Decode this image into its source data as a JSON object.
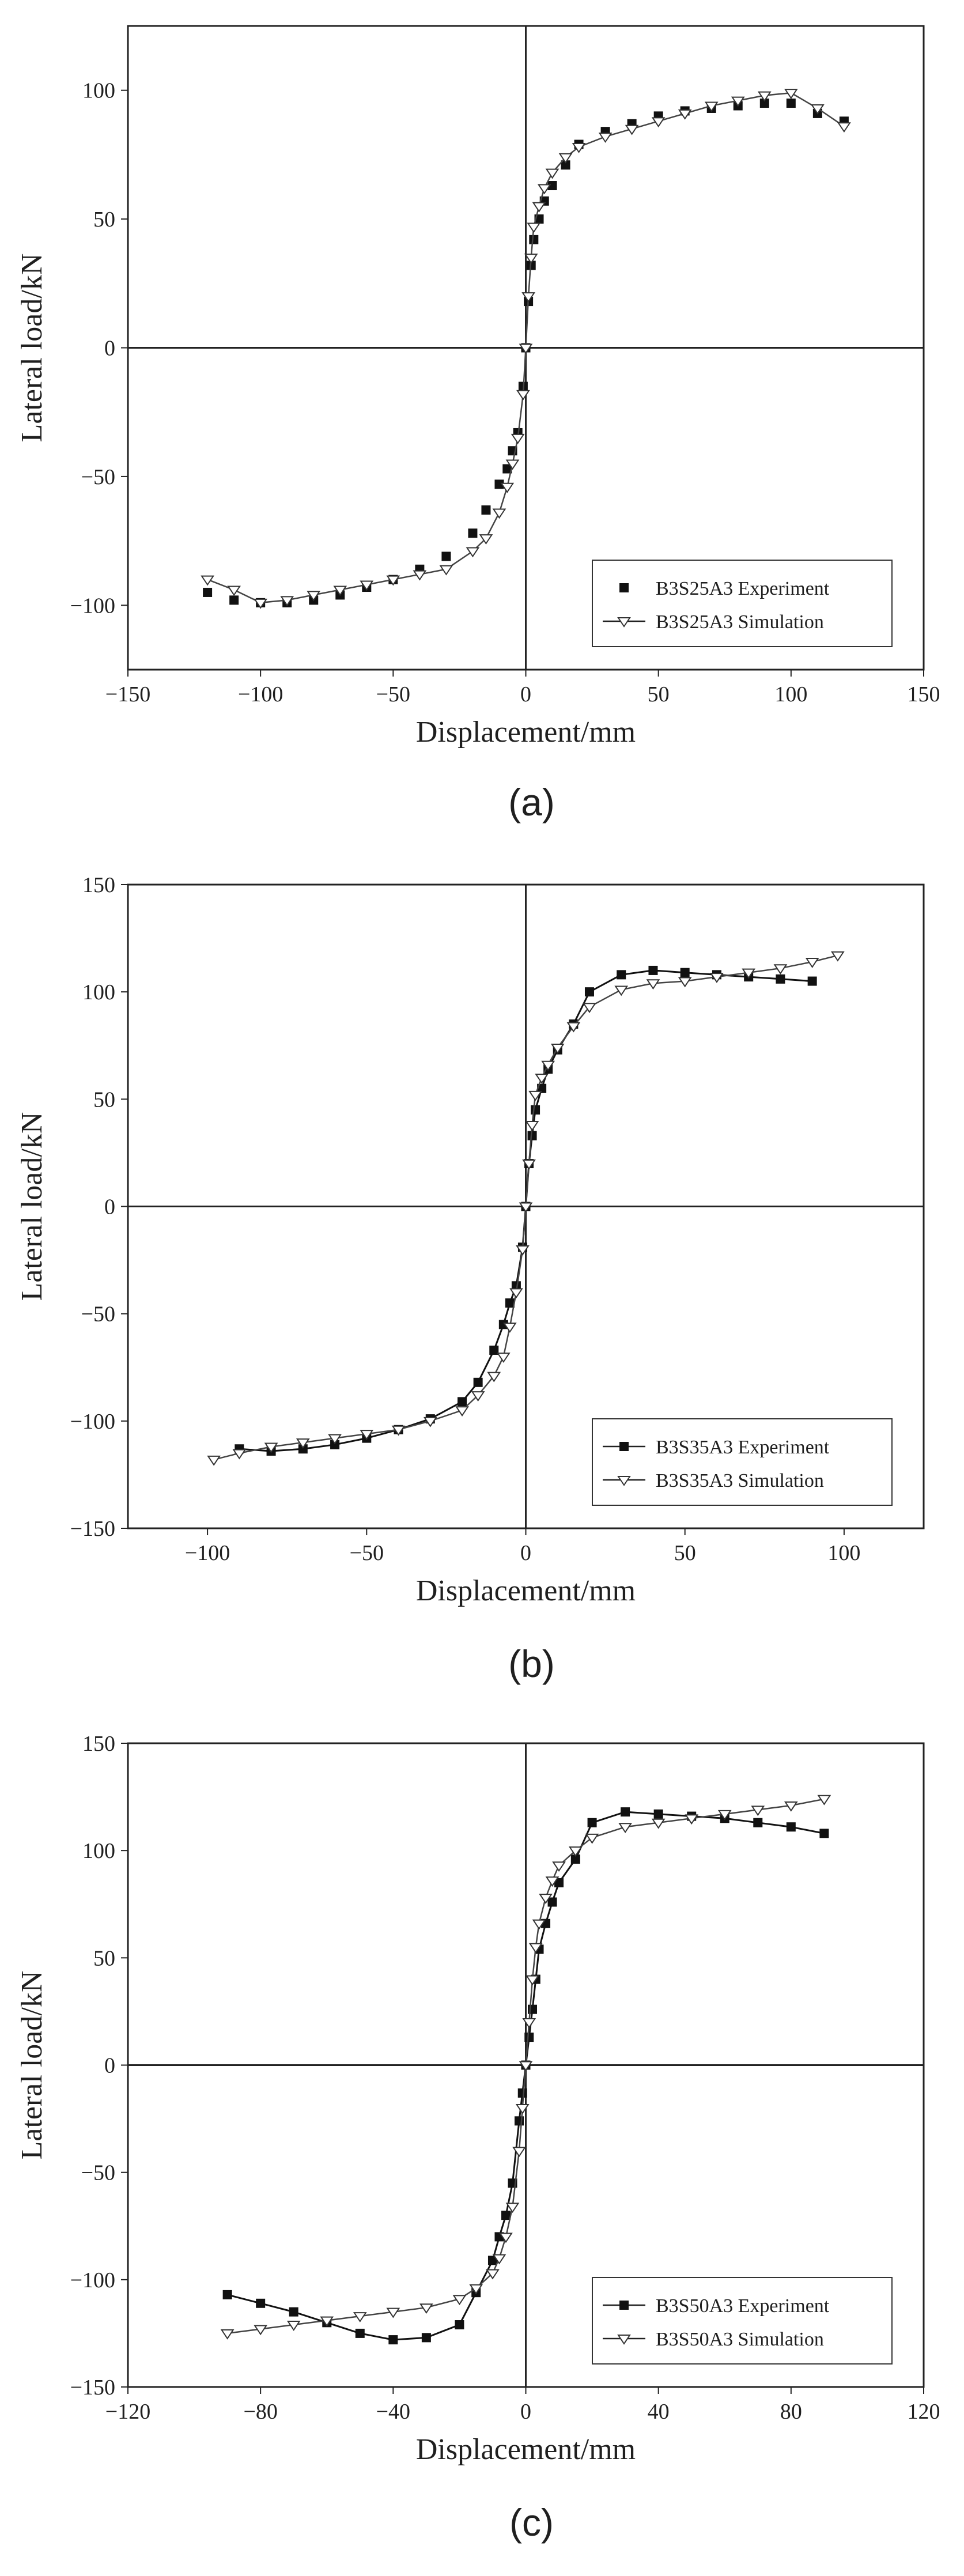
{
  "chart_data": [
    {
      "type": "line",
      "caption": "(a)",
      "xlabel": "Displacement/mm",
      "ylabel": "Lateral load/kN",
      "xlim": [
        -150,
        150
      ],
      "ylim": [
        -125,
        125
      ],
      "xticks": [
        -150,
        -100,
        -50,
        0,
        50,
        100,
        150
      ],
      "xtick_labels": [
        "−150",
        "−100",
        "−50",
        "0",
        "50",
        "100",
        "150"
      ],
      "yticks": [
        -100,
        -50,
        0,
        50,
        100
      ],
      "ytick_labels": [
        "−100",
        "−50",
        "0",
        "50",
        "100"
      ],
      "grid": false,
      "legend_position": "bottom-right",
      "series": [
        {
          "name": "B3S25A3 Experiment",
          "marker": "square-filled",
          "line": false,
          "x": [
            -120,
            -110,
            -100,
            -90,
            -80,
            -70,
            -60,
            -50,
            -40,
            -30,
            -20,
            -15,
            -10,
            -7,
            -5,
            -3,
            -1,
            0,
            1,
            2,
            3,
            5,
            7,
            10,
            15,
            20,
            30,
            40,
            50,
            60,
            70,
            80,
            90,
            100,
            110,
            120
          ],
          "y": [
            -95,
            -98,
            -99,
            -99,
            -98,
            -96,
            -93,
            -90,
            -86,
            -81,
            -72,
            -63,
            -53,
            -47,
            -40,
            -33,
            -15,
            0,
            18,
            32,
            42,
            50,
            57,
            63,
            71,
            79,
            84,
            87,
            90,
            92,
            93,
            94,
            95,
            95,
            91,
            88
          ]
        },
        {
          "name": "B3S25A3 Simulation",
          "marker": "triangle-open",
          "line": true,
          "x": [
            -120,
            -110,
            -100,
            -90,
            -80,
            -70,
            -60,
            -50,
            -40,
            -30,
            -20,
            -15,
            -10,
            -7,
            -5,
            -3,
            -1,
            0,
            1,
            2,
            3,
            5,
            7,
            10,
            15,
            20,
            30,
            40,
            50,
            60,
            70,
            80,
            90,
            100,
            110,
            120
          ],
          "y": [
            -90,
            -94,
            -99,
            -98,
            -96,
            -94,
            -92,
            -90,
            -88,
            -86,
            -79,
            -74,
            -64,
            -54,
            -45,
            -35,
            -18,
            0,
            20,
            35,
            47,
            55,
            62,
            68,
            74,
            78,
            82,
            85,
            88,
            91,
            94,
            96,
            98,
            99,
            93,
            86
          ]
        }
      ]
    },
    {
      "type": "line",
      "caption": "(b)",
      "xlabel": "Displacement/mm",
      "ylabel": "Lateral load/kN",
      "xlim": [
        -125,
        125
      ],
      "ylim": [
        -150,
        150
      ],
      "xticks": [
        -100,
        -50,
        0,
        50,
        100
      ],
      "xtick_labels": [
        "−100",
        "−50",
        "0",
        "50",
        "100"
      ],
      "yticks": [
        -150,
        -100,
        -50,
        0,
        50,
        100,
        150
      ],
      "ytick_labels": [
        "−150",
        "−100",
        "−50",
        "0",
        "50",
        "100",
        "150"
      ],
      "grid": false,
      "legend_position": "bottom-right",
      "series": [
        {
          "name": "B3S35A3 Experiment",
          "marker": "square-filled",
          "line": true,
          "x": [
            -90,
            -80,
            -70,
            -60,
            -50,
            -40,
            -30,
            -20,
            -15,
            -10,
            -7,
            -5,
            -3,
            -1,
            0,
            1,
            2,
            3,
            5,
            7,
            10,
            15,
            20,
            30,
            40,
            50,
            60,
            70,
            80,
            90
          ],
          "y": [
            -113,
            -114,
            -113,
            -111,
            -108,
            -104,
            -99,
            -91,
            -82,
            -67,
            -55,
            -45,
            -37,
            -19,
            0,
            20,
            33,
            45,
            55,
            64,
            73,
            85,
            100,
            108,
            110,
            109,
            108,
            107,
            106,
            105
          ]
        },
        {
          "name": "B3S35A3 Simulation",
          "marker": "triangle-open",
          "line": true,
          "x": [
            -98,
            -90,
            -80,
            -70,
            -60,
            -50,
            -40,
            -30,
            -20,
            -15,
            -10,
            -7,
            -5,
            -3,
            -1,
            0,
            1,
            2,
            3,
            5,
            7,
            10,
            15,
            20,
            30,
            40,
            50,
            60,
            70,
            80,
            90,
            98
          ],
          "y": [
            -118,
            -115,
            -112,
            -110,
            -108,
            -106,
            -104,
            -100,
            -95,
            -88,
            -79,
            -70,
            -56,
            -40,
            -20,
            0,
            20,
            38,
            52,
            60,
            66,
            74,
            84,
            93,
            101,
            104,
            105,
            107,
            109,
            111,
            114,
            117
          ]
        }
      ]
    },
    {
      "type": "line",
      "caption": "(c)",
      "xlabel": "Displacement/mm",
      "ylabel": "Lateral load/kN",
      "xlim": [
        -120,
        120
      ],
      "ylim": [
        -150,
        150
      ],
      "xticks": [
        -120,
        -80,
        -40,
        0,
        40,
        80,
        120
      ],
      "xtick_labels": [
        "−120",
        "−80",
        "−40",
        "0",
        "40",
        "80",
        "120"
      ],
      "yticks": [
        -150,
        -100,
        -50,
        0,
        50,
        100,
        150
      ],
      "ytick_labels": [
        "−150",
        "−100",
        "−50",
        "0",
        "50",
        "100",
        "150"
      ],
      "grid": false,
      "legend_position": "bottom-right",
      "series": [
        {
          "name": "B3S50A3 Experiment",
          "marker": "square-filled",
          "line": true,
          "x": [
            -90,
            -80,
            -70,
            -60,
            -50,
            -40,
            -30,
            -20,
            -15,
            -10,
            -8,
            -6,
            -4,
            -2,
            -1,
            0,
            1,
            2,
            3,
            4,
            6,
            8,
            10,
            15,
            20,
            30,
            40,
            50,
            60,
            70,
            80,
            90
          ],
          "y": [
            -107,
            -111,
            -115,
            -120,
            -125,
            -128,
            -127,
            -121,
            -106,
            -91,
            -80,
            -70,
            -55,
            -26,
            -13,
            0,
            13,
            26,
            40,
            54,
            66,
            76,
            85,
            96,
            113,
            118,
            117,
            116,
            115,
            113,
            111,
            108
          ]
        },
        {
          "name": "B3S50A3 Simulation",
          "marker": "triangle-open",
          "line": true,
          "x": [
            -90,
            -80,
            -70,
            -60,
            -50,
            -40,
            -30,
            -20,
            -15,
            -10,
            -8,
            -6,
            -4,
            -2,
            -1,
            0,
            1,
            2,
            3,
            4,
            6,
            8,
            10,
            15,
            20,
            30,
            40,
            50,
            60,
            70,
            80,
            90
          ],
          "y": [
            -125,
            -123,
            -121,
            -119,
            -117,
            -115,
            -113,
            -109,
            -104,
            -97,
            -90,
            -80,
            -66,
            -40,
            -20,
            0,
            20,
            40,
            55,
            66,
            78,
            86,
            93,
            100,
            106,
            111,
            113,
            115,
            117,
            119,
            121,
            124
          ]
        }
      ]
    }
  ]
}
